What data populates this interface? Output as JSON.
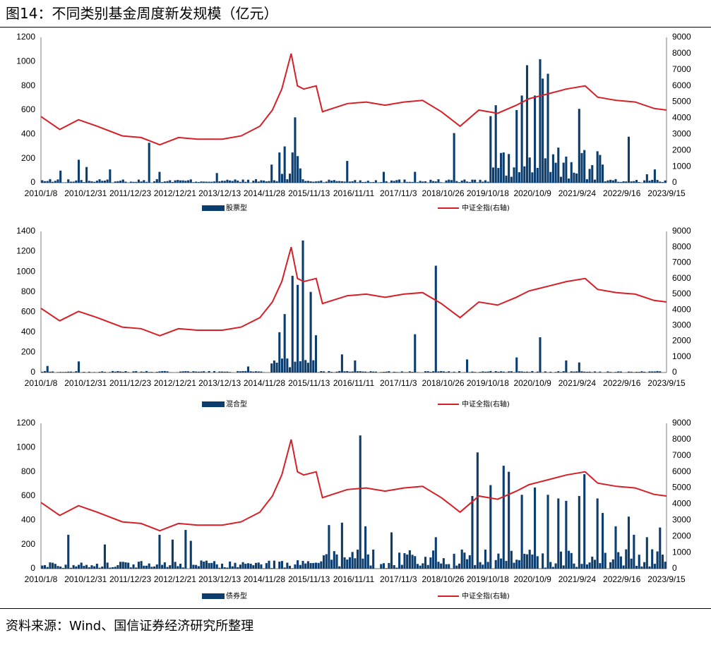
{
  "header": {
    "title": "图14：不同类别基金周度新发规模（亿元）"
  },
  "footer": {
    "source": "资料来源：Wind、国信证券经济研究所整理"
  },
  "colors": {
    "bar": "#0b3d6e",
    "line": "#d61f26",
    "axis": "#7f7f7f",
    "rule": "#000000"
  },
  "chart_data": [
    {
      "type": "bar",
      "series": [
        {
          "name": "股票型",
          "axis": "left",
          "chart": "bar"
        },
        {
          "name": "中证全指(右轴)",
          "axis": "right",
          "chart": "line"
        }
      ],
      "x_tick_labels": [
        "2010/1/8",
        "2010/12/31",
        "2011/12/23",
        "2012/12/21",
        "2013/12/13",
        "2014/11/28",
        "2015/11/13",
        "2016/11/11",
        "2017/11/3",
        "2018/10/26",
        "2019/10/18",
        "2020/10/9",
        "2021/9/24",
        "2022/9/16",
        "2023/9/15"
      ],
      "left_ticks": [
        "0",
        "200",
        "400",
        "600",
        "800",
        "1000",
        "1200"
      ],
      "right_ticks": [
        "0",
        "1000",
        "2000",
        "3000",
        "4000",
        "5000",
        "6000",
        "7000",
        "8000",
        "9000"
      ],
      "ylim_left": [
        0,
        1200
      ],
      "ylim_right": [
        0,
        9000
      ],
      "bar_spikes": [
        [
          0.03,
          100
        ],
        [
          0.06,
          190
        ],
        [
          0.07,
          130
        ],
        [
          0.11,
          110
        ],
        [
          0.17,
          330
        ],
        [
          0.19,
          90
        ],
        [
          0.28,
          80
        ],
        [
          0.37,
          150
        ],
        [
          0.38,
          250
        ],
        [
          0.39,
          300
        ],
        [
          0.4,
          250
        ],
        [
          0.405,
          540
        ],
        [
          0.41,
          220
        ],
        [
          0.49,
          180
        ],
        [
          0.55,
          90
        ],
        [
          0.6,
          90
        ],
        [
          0.66,
          410
        ],
        [
          0.72,
          550
        ],
        [
          0.73,
          640
        ],
        [
          0.74,
          250
        ],
        [
          0.76,
          600
        ],
        [
          0.77,
          720
        ],
        [
          0.78,
          970
        ],
        [
          0.79,
          720
        ],
        [
          0.8,
          1020
        ],
        [
          0.805,
          860
        ],
        [
          0.81,
          900
        ],
        [
          0.83,
          290
        ],
        [
          0.86,
          610
        ],
        [
          0.87,
          270
        ],
        [
          0.89,
          260
        ],
        [
          0.9,
          150
        ],
        [
          0.94,
          380
        ],
        [
          0.97,
          70
        ],
        [
          0.985,
          110
        ]
      ],
      "index_points": [
        [
          0,
          4100
        ],
        [
          0.03,
          3300
        ],
        [
          0.06,
          3900
        ],
        [
          0.09,
          3500
        ],
        [
          0.13,
          2900
        ],
        [
          0.16,
          2800
        ],
        [
          0.19,
          2350
        ],
        [
          0.22,
          2800
        ],
        [
          0.25,
          2700
        ],
        [
          0.29,
          2700
        ],
        [
          0.32,
          2900
        ],
        [
          0.35,
          3500
        ],
        [
          0.37,
          4500
        ],
        [
          0.385,
          5800
        ],
        [
          0.4,
          8000
        ],
        [
          0.41,
          6000
        ],
        [
          0.42,
          5800
        ],
        [
          0.44,
          6000
        ],
        [
          0.45,
          4400
        ],
        [
          0.49,
          4900
        ],
        [
          0.52,
          5000
        ],
        [
          0.55,
          4800
        ],
        [
          0.58,
          5000
        ],
        [
          0.61,
          5100
        ],
        [
          0.64,
          4400
        ],
        [
          0.67,
          3500
        ],
        [
          0.7,
          4500
        ],
        [
          0.73,
          4300
        ],
        [
          0.76,
          4800
        ],
        [
          0.78,
          5200
        ],
        [
          0.81,
          5500
        ],
        [
          0.84,
          5800
        ],
        [
          0.87,
          6000
        ],
        [
          0.89,
          5300
        ],
        [
          0.92,
          5100
        ],
        [
          0.95,
          5000
        ],
        [
          0.98,
          4600
        ],
        [
          1.0,
          4500
        ]
      ]
    },
    {
      "type": "bar",
      "series": [
        {
          "name": "混合型",
          "axis": "left",
          "chart": "bar"
        },
        {
          "name": "中证全指(右轴)",
          "axis": "right",
          "chart": "line"
        }
      ],
      "x_tick_labels": [
        "2010/1/8",
        "2010/12/31",
        "2011/12/23",
        "2012/12/21",
        "2013/12/13",
        "2014/11/28",
        "2015/11/13",
        "2016/11/11",
        "2017/11/3",
        "2018/10/26",
        "2019/10/18",
        "2020/10/9",
        "2021/9/24",
        "2022/9/16",
        "2023/9/15"
      ],
      "left_ticks": [
        "0",
        "200",
        "400",
        "600",
        "800",
        "1000",
        "1200",
        "1400"
      ],
      "right_ticks": [
        "0",
        "1000",
        "2000",
        "3000",
        "4000",
        "5000",
        "6000",
        "7000",
        "8000",
        "9000"
      ],
      "ylim_left": [
        0,
        1400
      ],
      "ylim_right": [
        0,
        9000
      ],
      "bar_spikes": [
        [
          0.01,
          65
        ],
        [
          0.06,
          110
        ],
        [
          0.33,
          60
        ],
        [
          0.37,
          90
        ],
        [
          0.38,
          400
        ],
        [
          0.39,
          580
        ],
        [
          0.4,
          960
        ],
        [
          0.41,
          870
        ],
        [
          0.42,
          1310
        ],
        [
          0.43,
          800
        ],
        [
          0.44,
          370
        ],
        [
          0.48,
          180
        ],
        [
          0.5,
          120
        ],
        [
          0.6,
          380
        ],
        [
          0.63,
          1060
        ],
        [
          0.68,
          130
        ],
        [
          0.76,
          150
        ],
        [
          0.8,
          350
        ],
        [
          0.84,
          120
        ],
        [
          0.86,
          100
        ]
      ],
      "index_points": [
        [
          0,
          4100
        ],
        [
          0.03,
          3300
        ],
        [
          0.06,
          3900
        ],
        [
          0.09,
          3500
        ],
        [
          0.13,
          2900
        ],
        [
          0.16,
          2800
        ],
        [
          0.19,
          2350
        ],
        [
          0.22,
          2800
        ],
        [
          0.25,
          2700
        ],
        [
          0.29,
          2700
        ],
        [
          0.32,
          2900
        ],
        [
          0.35,
          3500
        ],
        [
          0.37,
          4500
        ],
        [
          0.385,
          5800
        ],
        [
          0.4,
          8000
        ],
        [
          0.41,
          6000
        ],
        [
          0.42,
          5800
        ],
        [
          0.44,
          6000
        ],
        [
          0.45,
          4400
        ],
        [
          0.49,
          4900
        ],
        [
          0.52,
          5000
        ],
        [
          0.55,
          4800
        ],
        [
          0.58,
          5000
        ],
        [
          0.61,
          5100
        ],
        [
          0.64,
          4400
        ],
        [
          0.67,
          3500
        ],
        [
          0.7,
          4500
        ],
        [
          0.73,
          4300
        ],
        [
          0.76,
          4800
        ],
        [
          0.78,
          5200
        ],
        [
          0.81,
          5500
        ],
        [
          0.84,
          5800
        ],
        [
          0.87,
          6000
        ],
        [
          0.89,
          5300
        ],
        [
          0.92,
          5100
        ],
        [
          0.95,
          5000
        ],
        [
          0.98,
          4600
        ],
        [
          1.0,
          4500
        ]
      ]
    },
    {
      "type": "bar",
      "series": [
        {
          "name": "债券型",
          "axis": "left",
          "chart": "bar"
        },
        {
          "name": "中证全指(右轴)",
          "axis": "right",
          "chart": "line"
        }
      ],
      "x_tick_labels": [
        "2010/1/8",
        "2010/12/31",
        "2011/12/23",
        "2012/12/21",
        "2013/12/13",
        "2014/11/28",
        "2015/11/13",
        "2016/11/11",
        "2017/11/3",
        "2018/10/26",
        "2019/10/18",
        "2020/10/9",
        "2021/9/24",
        "2022/9/16",
        "2023/9/15"
      ],
      "left_ticks": [
        "0",
        "200",
        "400",
        "600",
        "800",
        "1000",
        "1200"
      ],
      "right_ticks": [
        "0",
        "1000",
        "2000",
        "3000",
        "4000",
        "5000",
        "6000",
        "7000",
        "8000",
        "9000"
      ],
      "ylim_left": [
        0,
        1200
      ],
      "ylim_right": [
        0,
        9000
      ],
      "bar_spikes": [
        [
          0.04,
          280
        ],
        [
          0.1,
          200
        ],
        [
          0.19,
          280
        ],
        [
          0.21,
          240
        ],
        [
          0.23,
          320
        ],
        [
          0.24,
          230
        ],
        [
          0.46,
          360
        ],
        [
          0.48,
          380
        ],
        [
          0.51,
          1100
        ],
        [
          0.52,
          350
        ],
        [
          0.56,
          300
        ],
        [
          0.63,
          260
        ],
        [
          0.69,
          600
        ],
        [
          0.7,
          960
        ],
        [
          0.72,
          690
        ],
        [
          0.74,
          850
        ],
        [
          0.75,
          800
        ],
        [
          0.77,
          610
        ],
        [
          0.79,
          670
        ],
        [
          0.81,
          610
        ],
        [
          0.83,
          580
        ],
        [
          0.84,
          560
        ],
        [
          0.86,
          600
        ],
        [
          0.87,
          780
        ],
        [
          0.89,
          580
        ],
        [
          0.9,
          460
        ],
        [
          0.92,
          350
        ],
        [
          0.94,
          430
        ],
        [
          0.95,
          280
        ],
        [
          0.97,
          260
        ],
        [
          0.99,
          340
        ]
      ],
      "index_points": [
        [
          0,
          4100
        ],
        [
          0.03,
          3300
        ],
        [
          0.06,
          3900
        ],
        [
          0.09,
          3500
        ],
        [
          0.13,
          2900
        ],
        [
          0.16,
          2800
        ],
        [
          0.19,
          2350
        ],
        [
          0.22,
          2800
        ],
        [
          0.25,
          2700
        ],
        [
          0.29,
          2700
        ],
        [
          0.32,
          2900
        ],
        [
          0.35,
          3500
        ],
        [
          0.37,
          4500
        ],
        [
          0.385,
          5800
        ],
        [
          0.4,
          8000
        ],
        [
          0.41,
          6000
        ],
        [
          0.42,
          5800
        ],
        [
          0.44,
          6000
        ],
        [
          0.45,
          4400
        ],
        [
          0.49,
          4900
        ],
        [
          0.52,
          5000
        ],
        [
          0.55,
          4800
        ],
        [
          0.58,
          5000
        ],
        [
          0.61,
          5100
        ],
        [
          0.64,
          4400
        ],
        [
          0.67,
          3500
        ],
        [
          0.7,
          4500
        ],
        [
          0.73,
          4300
        ],
        [
          0.76,
          4800
        ],
        [
          0.78,
          5200
        ],
        [
          0.81,
          5500
        ],
        [
          0.84,
          5800
        ],
        [
          0.87,
          6000
        ],
        [
          0.89,
          5300
        ],
        [
          0.92,
          5100
        ],
        [
          0.95,
          5000
        ],
        [
          0.98,
          4600
        ],
        [
          1.0,
          4500
        ]
      ]
    }
  ]
}
